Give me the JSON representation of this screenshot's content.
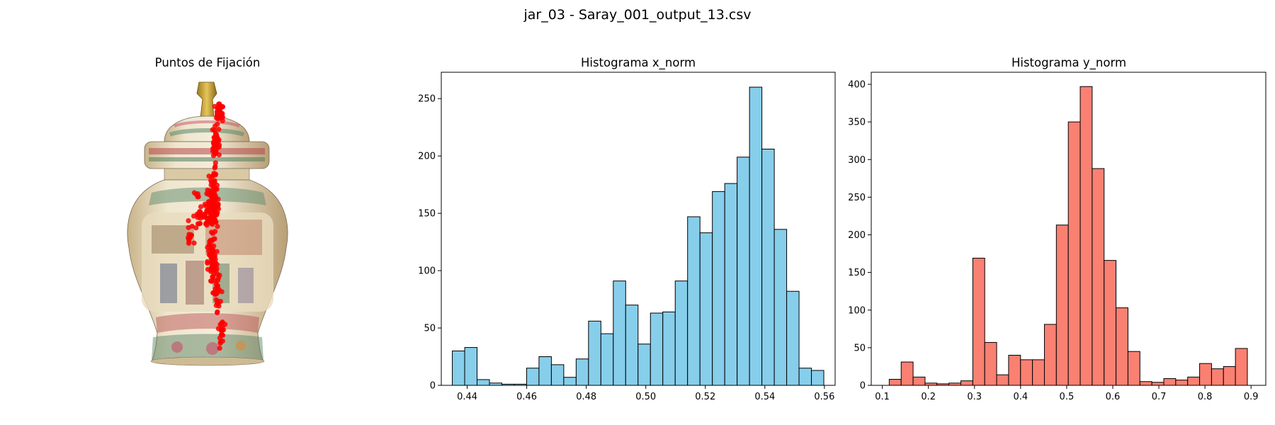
{
  "figure": {
    "suptitle": "jar_03 - Saray_001_output_13.csv"
  },
  "panels": {
    "fixation": {
      "title": "Puntos de Fijación",
      "image": "porcelain ginger jar with red fixation points overlaid",
      "point_color": "#ff0000"
    }
  },
  "chart_data": [
    {
      "type": "bar",
      "title": "Histograma x_norm",
      "xlabel": "",
      "ylabel": "",
      "color": "#87ceeb",
      "edgecolor": "#000000",
      "grid": false,
      "bin_start": 0.435,
      "bin_width": 0.00416,
      "values": [
        30,
        33,
        5,
        2,
        1,
        1,
        15,
        25,
        18,
        7,
        23,
        56,
        45,
        91,
        70,
        36,
        63,
        64,
        91,
        147,
        133,
        169,
        176,
        199,
        260,
        206,
        136,
        82,
        15,
        13
      ],
      "xlim": [
        0.4313,
        0.5636
      ],
      "ylim": [
        0,
        273
      ],
      "xticks": [
        0.44,
        0.46,
        0.48,
        0.5,
        0.52,
        0.54,
        0.56
      ],
      "xtick_labels": [
        "0.44",
        "0.46",
        "0.48",
        "0.50",
        "0.52",
        "0.54",
        "0.56"
      ],
      "yticks": [
        0,
        50,
        100,
        150,
        200,
        250
      ],
      "ytick_labels": [
        "0",
        "50",
        "100",
        "150",
        "200",
        "250"
      ]
    },
    {
      "type": "bar",
      "title": "Histograma y_norm",
      "xlabel": "",
      "ylabel": "",
      "color": "#fa8072",
      "edgecolor": "#000000",
      "grid": false,
      "bin_start": 0.115,
      "bin_width": 0.0259,
      "values": [
        8,
        31,
        11,
        3,
        2,
        3,
        6,
        169,
        57,
        14,
        40,
        34,
        34,
        81,
        213,
        350,
        397,
        288,
        166,
        103,
        45,
        5,
        4,
        9,
        7,
        11,
        29,
        22,
        25,
        49
      ],
      "xlim": [
        0.076,
        0.932
      ],
      "ylim": [
        0,
        416
      ],
      "xticks": [
        0.1,
        0.2,
        0.3,
        0.4,
        0.5,
        0.6,
        0.7,
        0.8,
        0.9
      ],
      "xtick_labels": [
        "0.1",
        "0.2",
        "0.3",
        "0.4",
        "0.5",
        "0.6",
        "0.7",
        "0.8",
        "0.9"
      ],
      "yticks": [
        0,
        50,
        100,
        150,
        200,
        250,
        300,
        350,
        400
      ],
      "ytick_labels": [
        "0",
        "50",
        "100",
        "150",
        "200",
        "250",
        "300",
        "350",
        "400"
      ]
    }
  ]
}
